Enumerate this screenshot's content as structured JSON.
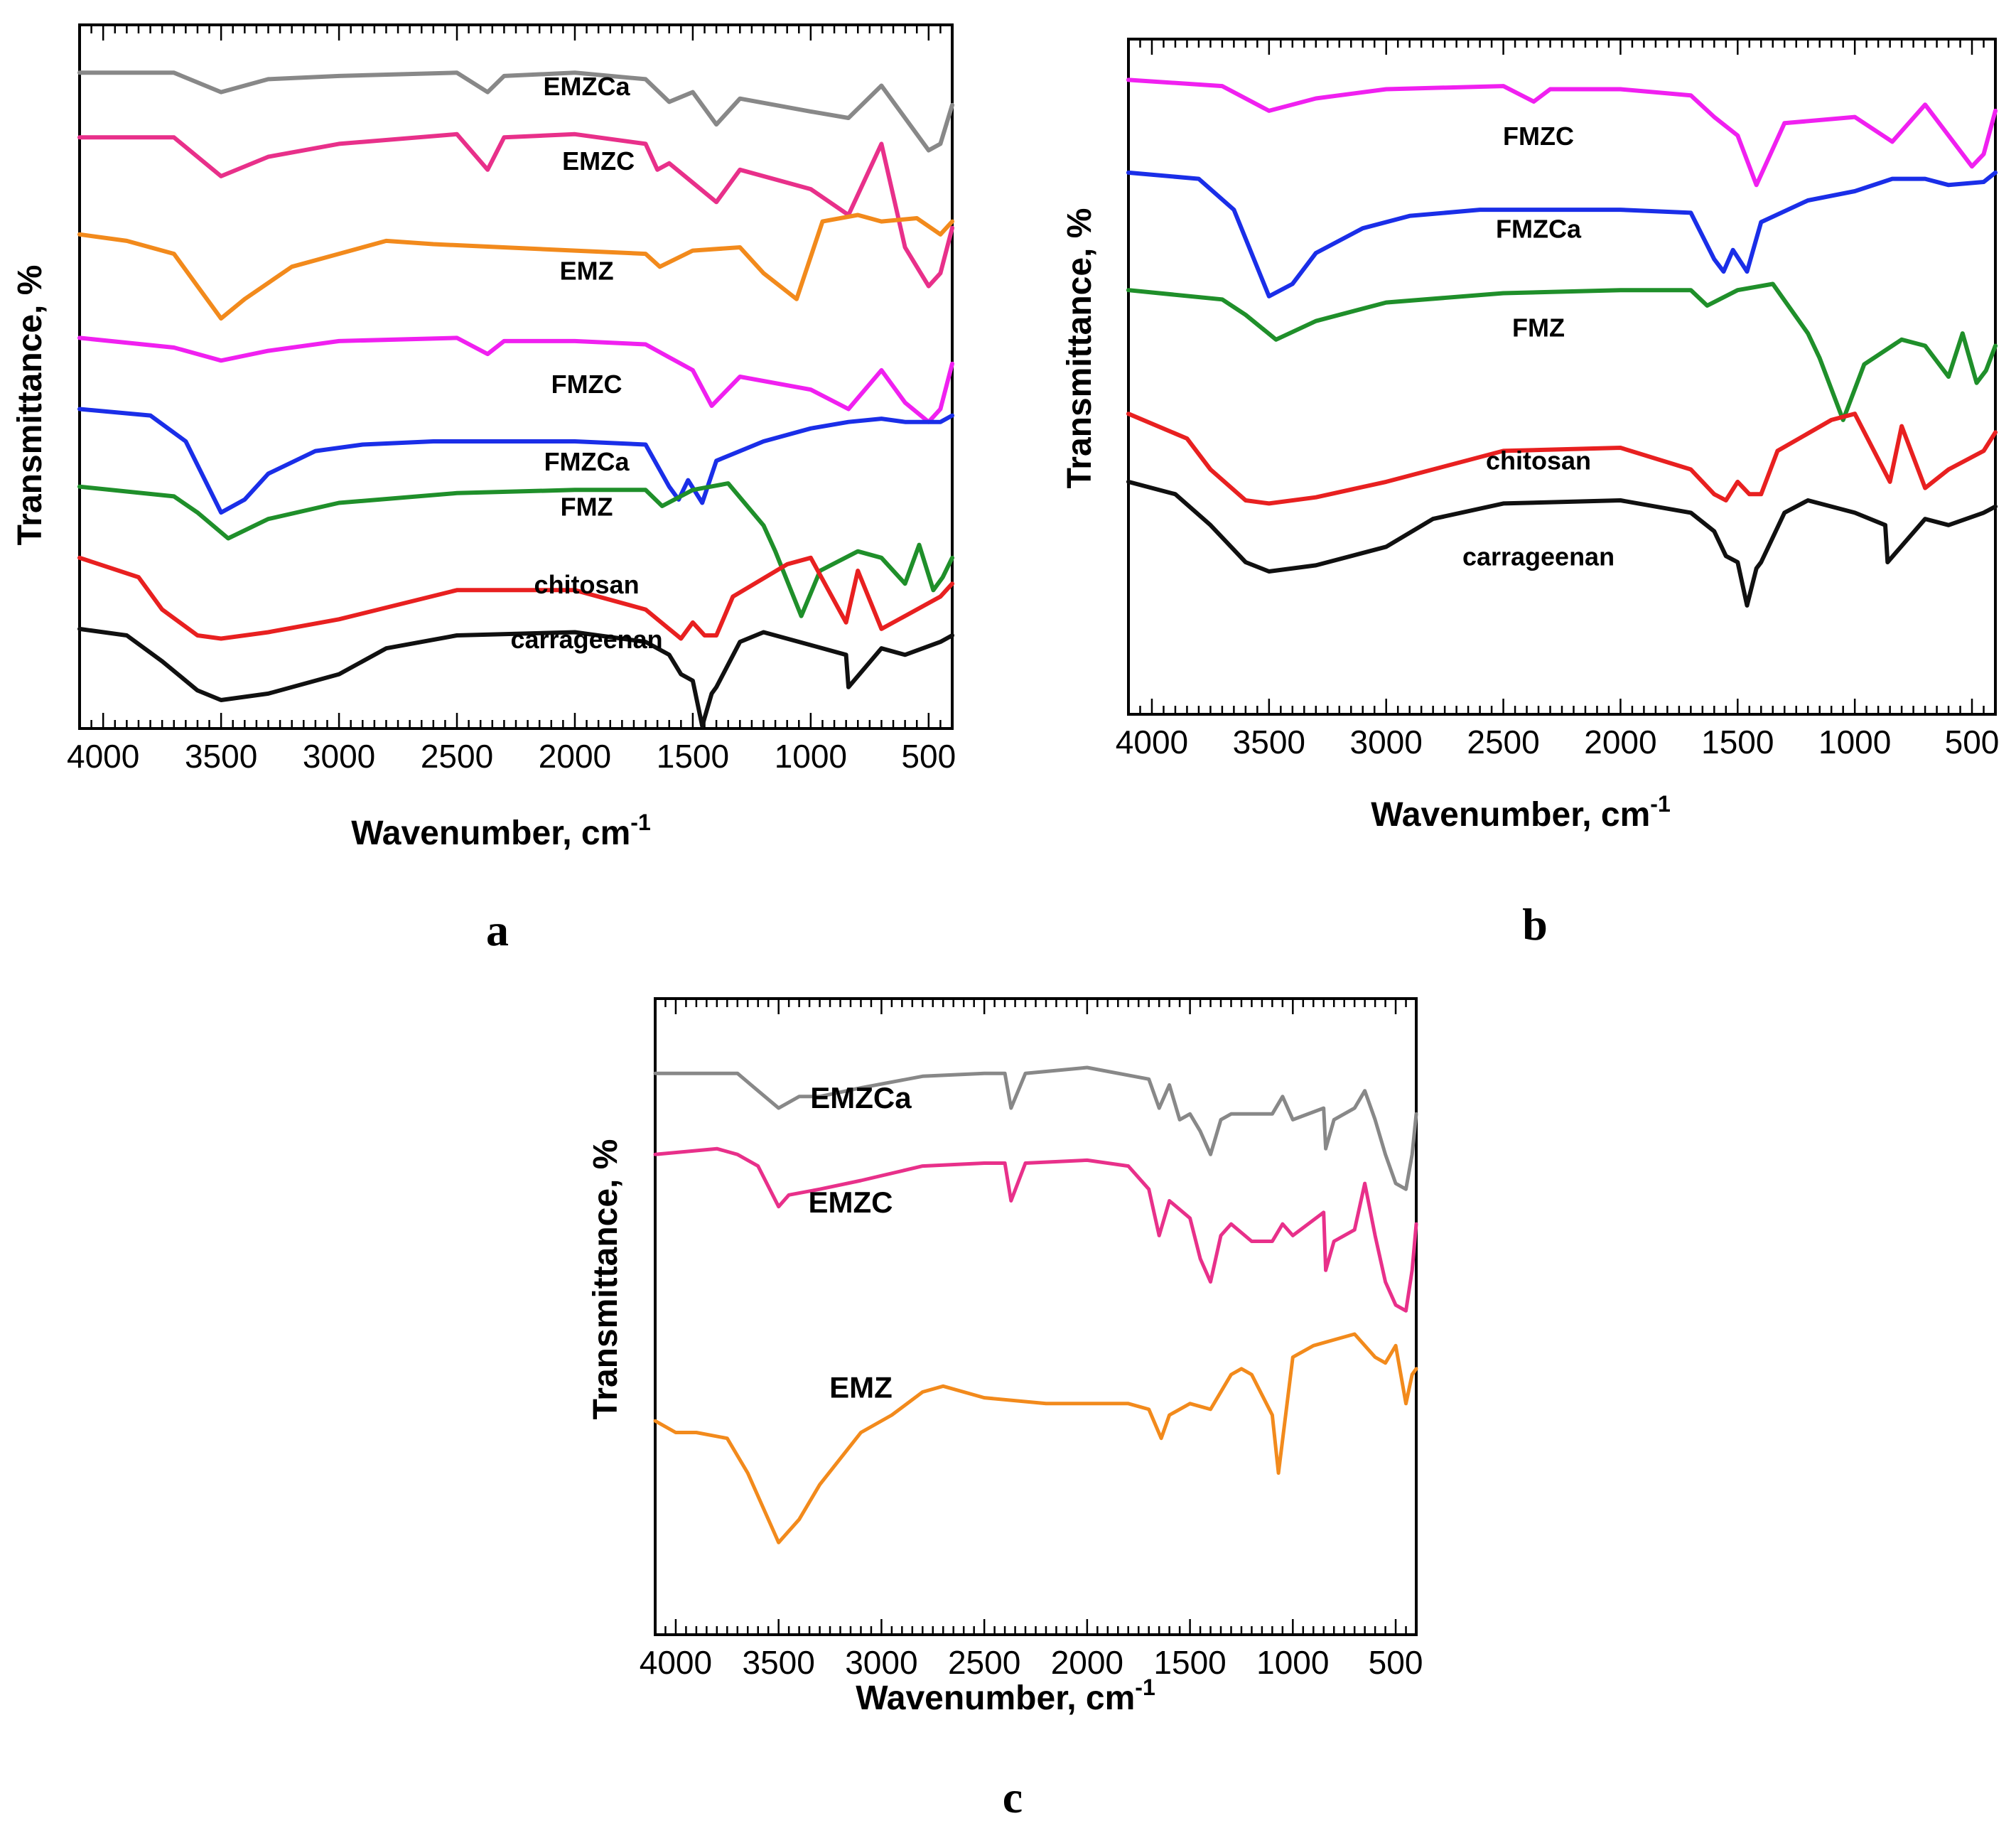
{
  "chart_data": [
    {
      "type": "line",
      "panel": "a",
      "title": "",
      "xlabel": "Wavenumber, cm",
      "xlabel_superscript": "-1",
      "ylabel": "Transmittance, %",
      "xlim": [
        4100,
        400
      ],
      "x_reversed": true,
      "x_ticks": [
        "4000",
        "3500",
        "3000",
        "2500",
        "2000",
        "1500",
        "1000",
        "500"
      ],
      "x_tick_values": [
        4000,
        3500,
        3000,
        2500,
        2000,
        1500,
        1000,
        500
      ],
      "ylim": [
        0,
        100
      ],
      "grid": false,
      "legend": "inline labels",
      "series": [
        {
          "name": "EMZCa",
          "color": "#888888",
          "label_at": [
            1950,
            93.5
          ],
          "x": [
            4100,
            3700,
            3500,
            3300,
            3000,
            2500,
            2370,
            2300,
            2000,
            1700,
            1600,
            1500,
            1400,
            1300,
            1000,
            840,
            700,
            600,
            500,
            450,
            400
          ],
          "y": [
            97,
            97,
            94,
            96,
            96.5,
            97,
            94,
            96.5,
            97,
            96,
            92.5,
            94,
            89,
            93,
            91,
            90,
            95,
            90,
            85,
            86,
            92
          ]
        },
        {
          "name": "EMZC",
          "color": "#e8308a",
          "label_at": [
            1900,
            82
          ],
          "x": [
            4100,
            3700,
            3500,
            3300,
            3000,
            2500,
            2370,
            2300,
            2000,
            1700,
            1650,
            1600,
            1500,
            1400,
            1300,
            1000,
            840,
            700,
            600,
            500,
            450,
            400
          ],
          "y": [
            87,
            87,
            81,
            84,
            86,
            87.5,
            82,
            87,
            87.5,
            86,
            82,
            83,
            80,
            77,
            82,
            79,
            75,
            86,
            70,
            64,
            66,
            73
          ]
        },
        {
          "name": "EMZ",
          "color": "#f28a1c",
          "label_at": [
            1950,
            65
          ],
          "x": [
            4100,
            3900,
            3700,
            3600,
            3500,
            3400,
            3200,
            3000,
            2800,
            2600,
            2000,
            1700,
            1640,
            1500,
            1300,
            1200,
            1060,
            950,
            800,
            700,
            550,
            450,
            400
          ],
          "y": [
            72,
            71,
            69,
            64,
            59,
            62,
            67,
            69,
            71,
            70.5,
            69.5,
            69,
            67,
            69.5,
            70,
            66,
            62,
            74,
            75,
            74,
            74.5,
            72,
            74
          ]
        },
        {
          "name": "FMZC",
          "color": "#f020f0",
          "label_at": [
            1950,
            47.5
          ],
          "x": [
            4100,
            3700,
            3500,
            3300,
            3000,
            2500,
            2370,
            2300,
            2000,
            1700,
            1600,
            1500,
            1420,
            1300,
            1000,
            840,
            700,
            600,
            500,
            450,
            400
          ],
          "y": [
            56,
            54.5,
            52.5,
            54,
            55.5,
            56,
            53.5,
            55.5,
            55.5,
            55,
            53,
            51,
            45.5,
            50,
            48,
            45,
            51,
            46,
            43,
            45,
            52
          ]
        },
        {
          "name": "FMZCa",
          "color": "#1a2ee8",
          "label_at": [
            1950,
            35.5
          ],
          "x": [
            4100,
            3800,
            3650,
            3500,
            3400,
            3300,
            3100,
            2900,
            2600,
            2000,
            1700,
            1600,
            1560,
            1520,
            1460,
            1400,
            1200,
            1000,
            840,
            700,
            600,
            450,
            400
          ],
          "y": [
            45,
            44,
            40,
            29,
            31,
            35,
            38.5,
            39.5,
            40,
            40,
            39.5,
            33,
            31,
            34,
            30.5,
            37,
            40,
            42,
            43,
            43.5,
            43,
            43,
            44
          ]
        },
        {
          "name": "FMZ",
          "color": "#1f8f2a",
          "label_at": [
            1950,
            28.5
          ],
          "x": [
            4100,
            3700,
            3600,
            3470,
            3300,
            3000,
            2500,
            2000,
            1700,
            1630,
            1500,
            1350,
            1200,
            1150,
            1040,
            960,
            800,
            700,
            600,
            540,
            480,
            440,
            400
          ],
          "y": [
            33,
            31.5,
            29,
            25,
            28,
            30.5,
            32,
            32.5,
            32.5,
            30,
            32.5,
            33.5,
            27,
            23,
            13,
            20,
            23,
            22,
            18,
            24,
            17,
            19,
            22
          ]
        },
        {
          "name": "chitosan",
          "color": "#e82020",
          "label_at": [
            1950,
            16.5
          ],
          "x": [
            4100,
            3850,
            3750,
            3600,
            3500,
            3300,
            3000,
            2500,
            2000,
            1700,
            1600,
            1550,
            1500,
            1450,
            1400,
            1330,
            1100,
            1000,
            850,
            800,
            700,
            600,
            450,
            400
          ],
          "y": [
            22,
            19,
            14,
            10,
            9.5,
            10.5,
            12.5,
            17,
            17,
            14,
            11,
            9.5,
            12,
            10,
            10,
            16,
            21,
            22,
            12,
            20,
            11,
            13,
            16,
            18
          ]
        },
        {
          "name": "carrageenan",
          "color": "#101010",
          "label_at": [
            1950,
            8
          ],
          "x": [
            4100,
            3900,
            3750,
            3600,
            3500,
            3300,
            3000,
            2800,
            2500,
            2000,
            1700,
            1600,
            1550,
            1500,
            1460,
            1420,
            1400,
            1300,
            1200,
            1000,
            850,
            840,
            700,
            600,
            450,
            400
          ],
          "y": [
            11,
            10,
            6,
            1.5,
            0,
            1,
            4,
            8,
            10,
            10.5,
            9,
            7,
            4,
            3,
            -4,
            1,
            2,
            9,
            10.5,
            8.5,
            7,
            2,
            8,
            7,
            9,
            10
          ]
        }
      ]
    },
    {
      "type": "line",
      "panel": "b",
      "title": "",
      "xlabel": "Wavenumber, cm",
      "xlabel_superscript": "-1",
      "ylabel": "Transmittance, %",
      "xlim": [
        4100,
        400
      ],
      "x_reversed": true,
      "x_ticks": [
        "4000",
        "3500",
        "3000",
        "2500",
        "2000",
        "1500",
        "1000",
        "500"
      ],
      "x_tick_values": [
        4000,
        3500,
        3000,
        2500,
        2000,
        1500,
        1000,
        500
      ],
      "ylim": [
        0,
        100
      ],
      "grid": false,
      "legend": "inline labels",
      "series": [
        {
          "name": "FMZC",
          "color": "#f020f0",
          "label_at": [
            2350,
            87.5
          ],
          "x": [
            4100,
            3700,
            3500,
            3300,
            3000,
            2500,
            2370,
            2300,
            2000,
            1700,
            1600,
            1500,
            1420,
            1300,
            1000,
            840,
            700,
            600,
            500,
            450,
            400
          ],
          "y": [
            98,
            97,
            93,
            95,
            96.5,
            97,
            94.5,
            96.5,
            96.5,
            95.5,
            92,
            89,
            81,
            91,
            92,
            88,
            94,
            89,
            84,
            86,
            93
          ]
        },
        {
          "name": "FMZCa",
          "color": "#1a2ee8",
          "label_at": [
            2350,
            72.5
          ],
          "x": [
            4100,
            3800,
            3650,
            3500,
            3400,
            3300,
            3100,
            2900,
            2600,
            2000,
            1700,
            1600,
            1560,
            1520,
            1460,
            1400,
            1200,
            1000,
            840,
            700,
            600,
            450,
            400
          ],
          "y": [
            83,
            82,
            77,
            63,
            65,
            70,
            74,
            76,
            77,
            77,
            76.5,
            69,
            67,
            70.5,
            67,
            75,
            78.5,
            80,
            82,
            82,
            81,
            81.5,
            83
          ]
        },
        {
          "name": "FMZ",
          "color": "#1f8f2a",
          "label_at": [
            2350,
            56.5
          ],
          "x": [
            4100,
            3700,
            3600,
            3470,
            3300,
            3000,
            2500,
            2000,
            1700,
            1630,
            1500,
            1350,
            1200,
            1150,
            1050,
            960,
            800,
            700,
            600,
            540,
            480,
            440,
            400
          ],
          "y": [
            64,
            62.5,
            60,
            56,
            59,
            62,
            63.5,
            64,
            64,
            61.5,
            64,
            65,
            57,
            53,
            43,
            52,
            56,
            55,
            50,
            57,
            49,
            51,
            55
          ]
        },
        {
          "name": "chitosan",
          "color": "#e82020",
          "label_at": [
            2350,
            35
          ],
          "x": [
            4100,
            3850,
            3750,
            3600,
            3500,
            3300,
            3000,
            2500,
            2000,
            1700,
            1600,
            1550,
            1500,
            1450,
            1400,
            1330,
            1100,
            1000,
            850,
            800,
            700,
            600,
            450,
            400
          ],
          "y": [
            44,
            40,
            35,
            30,
            29.5,
            30.5,
            33,
            38,
            38.5,
            35,
            31,
            30,
            33,
            31,
            31,
            38,
            43,
            44,
            33,
            42,
            32,
            35,
            38,
            41
          ]
        },
        {
          "name": "carrageenan",
          "color": "#101010",
          "label_at": [
            2350,
            19.5
          ],
          "x": [
            4100,
            3900,
            3750,
            3600,
            3500,
            3300,
            3000,
            2800,
            2500,
            2000,
            1700,
            1600,
            1550,
            1500,
            1460,
            1420,
            1400,
            1300,
            1200,
            1000,
            870,
            860,
            700,
            600,
            450,
            400
          ],
          "y": [
            33,
            31,
            26,
            20,
            18.5,
            19.5,
            22.5,
            27,
            29.5,
            30,
            28,
            25,
            21,
            20,
            13,
            19,
            20,
            28,
            30,
            28,
            26,
            20,
            27,
            26,
            28,
            29
          ]
        }
      ]
    },
    {
      "type": "line",
      "panel": "c",
      "title": "",
      "xlabel": "Wavenumber, cm",
      "xlabel_superscript": "-1",
      "ylabel": "Transmittance, %",
      "xlim": [
        4100,
        400
      ],
      "x_reversed": true,
      "x_ticks": [
        "4000",
        "3500",
        "3000",
        "2500",
        "2000",
        "1500",
        "1000",
        "500"
      ],
      "x_tick_values": [
        4000,
        3500,
        3000,
        2500,
        2000,
        1500,
        1000,
        500
      ],
      "ylim": [
        0,
        100
      ],
      "grid": false,
      "legend": "inline labels",
      "series": [
        {
          "name": "EMZCa",
          "color": "#888888",
          "label_at": [
            3100,
            86
          ],
          "x": [
            4100,
            3700,
            3600,
            3500,
            3400,
            3300,
            3100,
            2800,
            2500,
            2400,
            2370,
            2300,
            2000,
            1700,
            1650,
            1600,
            1550,
            1500,
            1450,
            1400,
            1350,
            1300,
            1100,
            1050,
            1000,
            850,
            840,
            800,
            700,
            650,
            600,
            550,
            500,
            450,
            420,
            400
          ],
          "y": [
            92,
            92,
            89,
            86,
            88,
            88,
            89.5,
            91.5,
            92,
            92,
            86,
            92,
            93,
            91,
            86,
            90,
            84,
            85,
            82,
            78,
            84,
            85,
            85,
            88,
            84,
            86,
            79,
            84,
            86,
            89,
            84,
            78,
            73,
            72,
            78,
            85
          ]
        },
        {
          "name": "EMZC",
          "color": "#e8308a",
          "label_at": [
            3150,
            68
          ],
          "x": [
            4100,
            3800,
            3700,
            3600,
            3500,
            3450,
            3300,
            3100,
            2800,
            2500,
            2400,
            2370,
            2300,
            2000,
            1800,
            1700,
            1650,
            1600,
            1500,
            1450,
            1400,
            1350,
            1300,
            1200,
            1100,
            1050,
            1000,
            850,
            840,
            800,
            750,
            700,
            650,
            600,
            550,
            500,
            450,
            420,
            400
          ],
          "y": [
            78,
            79,
            78,
            76,
            69,
            71,
            72,
            73.5,
            76,
            76.5,
            76.5,
            70,
            76.5,
            77,
            76,
            72,
            64,
            70,
            67,
            60,
            56,
            64,
            66,
            63,
            63,
            66,
            64,
            68,
            58,
            63,
            64,
            65,
            73,
            64,
            56,
            52,
            51,
            58,
            66
          ]
        },
        {
          "name": "EMZ",
          "color": "#f28a1c",
          "label_at": [
            3100,
            36
          ],
          "x": [
            4100,
            4000,
            3900,
            3750,
            3650,
            3500,
            3400,
            3300,
            3100,
            2950,
            2800,
            2700,
            2500,
            2200,
            2000,
            1800,
            1700,
            1640,
            1600,
            1500,
            1400,
            1300,
            1250,
            1200,
            1100,
            1070,
            1000,
            900,
            800,
            700,
            600,
            550,
            500,
            450,
            420,
            400
          ],
          "y": [
            32,
            30,
            30,
            29,
            23,
            11,
            15,
            21,
            30,
            33,
            37,
            38,
            36,
            35,
            35,
            35,
            34,
            29,
            33,
            35,
            34,
            40,
            41,
            40,
            33,
            23,
            43,
            45,
            46,
            47,
            43,
            42,
            45,
            35,
            40,
            41
          ]
        }
      ]
    }
  ],
  "panels": {
    "a": {
      "letter": "a"
    },
    "b": {
      "letter": "b"
    },
    "c": {
      "letter": "c"
    }
  }
}
